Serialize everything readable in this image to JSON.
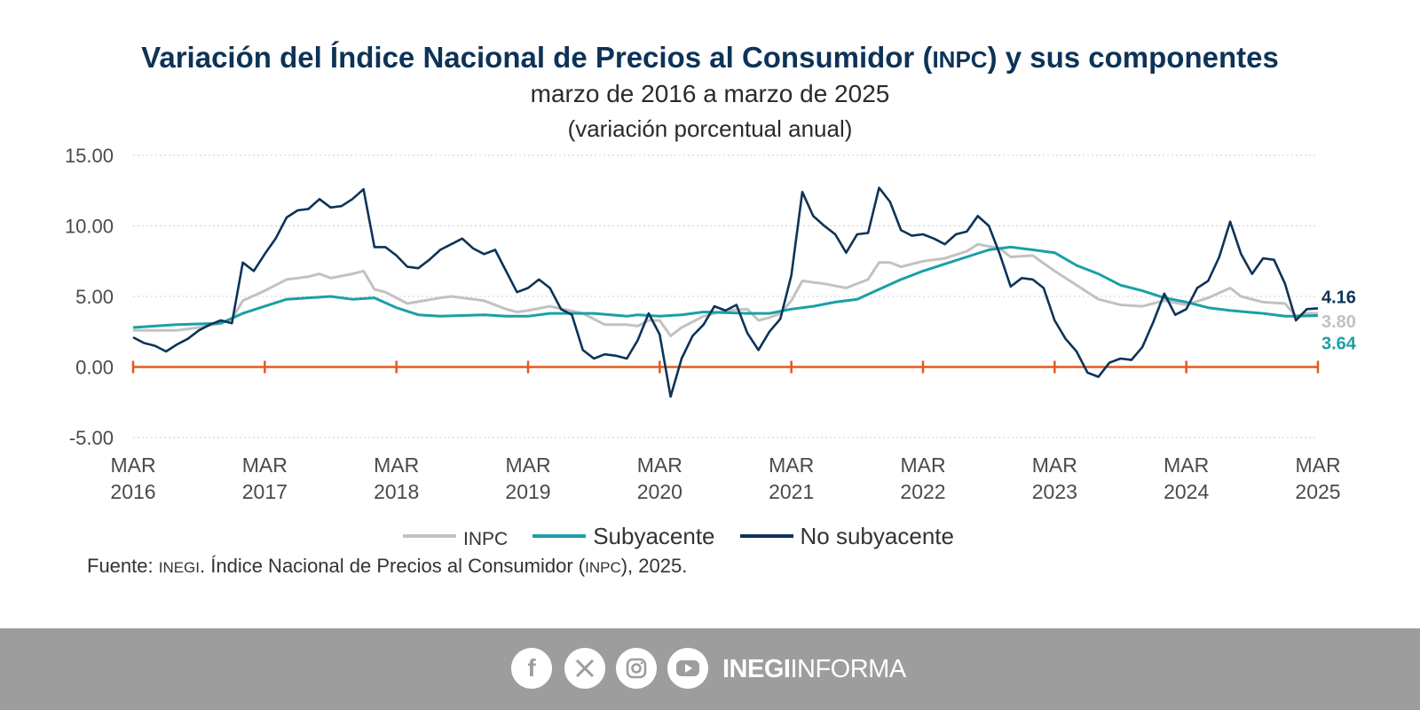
{
  "header": {
    "title_pre": "Variación del Índice Nacional de Precios al Consumidor (",
    "title_abbr": "INPC",
    "title_post": ") y sus componentes",
    "subtitle": "marzo de 2016 a marzo de 2025",
    "unit": "(variación porcentual anual)"
  },
  "legend": {
    "inpc": "INPC",
    "sub": "Subyacente",
    "nosub": "No subyacente"
  },
  "source": {
    "pre": "Fuente: ",
    "org": "INEGI",
    "mid": ". Índice Nacional de Precios al Consumidor (",
    "abbr": "INPC",
    "post": "), 2025."
  },
  "footer": {
    "brand_bold": "INEGI",
    "brand_rest": "INFORMA",
    "icons": [
      "facebook-icon",
      "x-icon",
      "instagram-icon",
      "youtube-icon"
    ]
  },
  "colors": {
    "inpc": "#c2c2c2",
    "sub": "#1aa0a6",
    "nosub": "#0d3358",
    "zero_axis": "#e05a1e",
    "footer": "#9d9d9d"
  },
  "chart_data": {
    "type": "line",
    "title": "Variación del Índice Nacional de Precios al Consumidor (INPC) y sus componentes",
    "subtitle": "marzo de 2016 a marzo de 2025",
    "ylabel": "(variación porcentual anual)",
    "ylim": [
      -5,
      15
    ],
    "yticks": [
      "15.00",
      "10.00",
      "5.00",
      "0.00",
      "-5.00"
    ],
    "xlim": [
      2016.167,
      2025.167
    ],
    "xticks": [
      "MAR 2016",
      "MAR 2017",
      "MAR 2018",
      "MAR 2019",
      "MAR 2020",
      "MAR 2021",
      "MAR 2022",
      "MAR 2023",
      "MAR 2024",
      "MAR 2025"
    ],
    "grid": true,
    "legend_position": "bottom",
    "end_labels": [
      "4.16",
      "3.80",
      "3.64"
    ],
    "series": [
      {
        "name": "INPC",
        "values": [
          [
            2016.167,
            2.6
          ],
          [
            2016.5,
            2.6
          ],
          [
            2016.667,
            2.8
          ],
          [
            2016.833,
            3.1
          ],
          [
            2016.917,
            3.4
          ],
          [
            2017.0,
            4.7
          ],
          [
            2017.167,
            5.4
          ],
          [
            2017.333,
            6.2
          ],
          [
            2017.5,
            6.4
          ],
          [
            2017.583,
            6.6
          ],
          [
            2017.667,
            6.3
          ],
          [
            2017.833,
            6.6
          ],
          [
            2017.917,
            6.8
          ],
          [
            2018.0,
            5.5
          ],
          [
            2018.083,
            5.3
          ],
          [
            2018.25,
            4.5
          ],
          [
            2018.5,
            4.9
          ],
          [
            2018.583,
            5.0
          ],
          [
            2018.833,
            4.7
          ],
          [
            2019.0,
            4.1
          ],
          [
            2019.083,
            3.9
          ],
          [
            2019.167,
            4.0
          ],
          [
            2019.333,
            4.3
          ],
          [
            2019.583,
            3.8
          ],
          [
            2019.75,
            3.0
          ],
          [
            2019.917,
            3.0
          ],
          [
            2020.0,
            2.9
          ],
          [
            2020.083,
            3.3
          ],
          [
            2020.167,
            3.3
          ],
          [
            2020.25,
            2.2
          ],
          [
            2020.333,
            2.8
          ],
          [
            2020.5,
            3.6
          ],
          [
            2020.667,
            4.0
          ],
          [
            2020.833,
            4.1
          ],
          [
            2020.917,
            3.3
          ],
          [
            2021.0,
            3.5
          ],
          [
            2021.083,
            3.8
          ],
          [
            2021.167,
            4.7
          ],
          [
            2021.25,
            6.1
          ],
          [
            2021.417,
            5.9
          ],
          [
            2021.583,
            5.6
          ],
          [
            2021.75,
            6.2
          ],
          [
            2021.833,
            7.4
          ],
          [
            2021.917,
            7.4
          ],
          [
            2022.0,
            7.1
          ],
          [
            2022.167,
            7.5
          ],
          [
            2022.333,
            7.7
          ],
          [
            2022.5,
            8.2
          ],
          [
            2022.583,
            8.7
          ],
          [
            2022.75,
            8.4
          ],
          [
            2022.833,
            7.8
          ],
          [
            2023.0,
            7.9
          ],
          [
            2023.167,
            6.8
          ],
          [
            2023.333,
            5.8
          ],
          [
            2023.5,
            4.8
          ],
          [
            2023.667,
            4.4
          ],
          [
            2023.833,
            4.3
          ],
          [
            2024.0,
            4.7
          ],
          [
            2024.167,
            4.4
          ],
          [
            2024.333,
            4.9
          ],
          [
            2024.5,
            5.6
          ],
          [
            2024.583,
            5.0
          ],
          [
            2024.75,
            4.6
          ],
          [
            2024.917,
            4.5
          ],
          [
            2025.0,
            3.6
          ],
          [
            2025.083,
            3.8
          ],
          [
            2025.167,
            3.8
          ]
        ]
      },
      {
        "name": "Subyacente",
        "values": [
          [
            2016.167,
            2.8
          ],
          [
            2016.5,
            3.0
          ],
          [
            2016.833,
            3.1
          ],
          [
            2017.0,
            3.8
          ],
          [
            2017.167,
            4.3
          ],
          [
            2017.333,
            4.8
          ],
          [
            2017.5,
            4.9
          ],
          [
            2017.667,
            5.0
          ],
          [
            2017.833,
            4.8
          ],
          [
            2018.0,
            4.9
          ],
          [
            2018.167,
            4.2
          ],
          [
            2018.333,
            3.7
          ],
          [
            2018.5,
            3.6
          ],
          [
            2018.833,
            3.7
          ],
          [
            2019.0,
            3.6
          ],
          [
            2019.167,
            3.6
          ],
          [
            2019.333,
            3.8
          ],
          [
            2019.667,
            3.8
          ],
          [
            2019.917,
            3.6
          ],
          [
            2020.0,
            3.7
          ],
          [
            2020.167,
            3.6
          ],
          [
            2020.333,
            3.7
          ],
          [
            2020.5,
            3.9
          ],
          [
            2020.833,
            3.8
          ],
          [
            2021.0,
            3.8
          ],
          [
            2021.167,
            4.1
          ],
          [
            2021.333,
            4.3
          ],
          [
            2021.5,
            4.6
          ],
          [
            2021.667,
            4.8
          ],
          [
            2021.833,
            5.5
          ],
          [
            2022.0,
            6.2
          ],
          [
            2022.167,
            6.8
          ],
          [
            2022.333,
            7.3
          ],
          [
            2022.5,
            7.8
          ],
          [
            2022.667,
            8.3
          ],
          [
            2022.833,
            8.5
          ],
          [
            2023.0,
            8.3
          ],
          [
            2023.167,
            8.1
          ],
          [
            2023.333,
            7.2
          ],
          [
            2023.5,
            6.6
          ],
          [
            2023.667,
            5.8
          ],
          [
            2023.833,
            5.4
          ],
          [
            2024.0,
            4.9
          ],
          [
            2024.167,
            4.6
          ],
          [
            2024.333,
            4.2
          ],
          [
            2024.5,
            4.0
          ],
          [
            2024.75,
            3.8
          ],
          [
            2024.917,
            3.6
          ],
          [
            2025.0,
            3.6
          ],
          [
            2025.167,
            3.64
          ]
        ]
      },
      {
        "name": "No subyacente",
        "values": [
          [
            2016.167,
            2.1
          ],
          [
            2016.25,
            1.7
          ],
          [
            2016.333,
            1.5
          ],
          [
            2016.417,
            1.1
          ],
          [
            2016.5,
            1.6
          ],
          [
            2016.583,
            2.0
          ],
          [
            2016.667,
            2.6
          ],
          [
            2016.75,
            3.0
          ],
          [
            2016.833,
            3.3
          ],
          [
            2016.917,
            3.1
          ],
          [
            2017.0,
            7.4
          ],
          [
            2017.083,
            6.8
          ],
          [
            2017.167,
            8.0
          ],
          [
            2017.25,
            9.1
          ],
          [
            2017.333,
            10.6
          ],
          [
            2017.417,
            11.1
          ],
          [
            2017.5,
            11.2
          ],
          [
            2017.583,
            11.9
          ],
          [
            2017.667,
            11.3
          ],
          [
            2017.75,
            11.4
          ],
          [
            2017.833,
            11.9
          ],
          [
            2017.917,
            12.6
          ],
          [
            2018.0,
            8.5
          ],
          [
            2018.083,
            8.5
          ],
          [
            2018.167,
            7.9
          ],
          [
            2018.25,
            7.1
          ],
          [
            2018.333,
            7.0
          ],
          [
            2018.417,
            7.6
          ],
          [
            2018.5,
            8.3
          ],
          [
            2018.583,
            8.7
          ],
          [
            2018.667,
            9.1
          ],
          [
            2018.75,
            8.4
          ],
          [
            2018.833,
            8.0
          ],
          [
            2018.917,
            8.3
          ],
          [
            2019.0,
            6.8
          ],
          [
            2019.083,
            5.3
          ],
          [
            2019.167,
            5.6
          ],
          [
            2019.25,
            6.2
          ],
          [
            2019.333,
            5.6
          ],
          [
            2019.417,
            4.1
          ],
          [
            2019.5,
            3.7
          ],
          [
            2019.583,
            1.2
          ],
          [
            2019.667,
            0.6
          ],
          [
            2019.75,
            0.9
          ],
          [
            2019.833,
            0.8
          ],
          [
            2019.917,
            0.6
          ],
          [
            2020.0,
            1.9
          ],
          [
            2020.083,
            3.8
          ],
          [
            2020.167,
            2.3
          ],
          [
            2020.25,
            -2.1
          ],
          [
            2020.333,
            0.6
          ],
          [
            2020.417,
            2.2
          ],
          [
            2020.5,
            3.0
          ],
          [
            2020.583,
            4.3
          ],
          [
            2020.667,
            4.0
          ],
          [
            2020.75,
            4.4
          ],
          [
            2020.833,
            2.4
          ],
          [
            2020.917,
            1.2
          ],
          [
            2021.0,
            2.5
          ],
          [
            2021.083,
            3.4
          ],
          [
            2021.167,
            6.5
          ],
          [
            2021.25,
            12.4
          ],
          [
            2021.333,
            10.7
          ],
          [
            2021.417,
            10.0
          ],
          [
            2021.5,
            9.4
          ],
          [
            2021.583,
            8.1
          ],
          [
            2021.667,
            9.4
          ],
          [
            2021.75,
            9.5
          ],
          [
            2021.833,
            12.7
          ],
          [
            2021.917,
            11.7
          ],
          [
            2022.0,
            9.7
          ],
          [
            2022.083,
            9.3
          ],
          [
            2022.167,
            9.4
          ],
          [
            2022.25,
            9.1
          ],
          [
            2022.333,
            8.7
          ],
          [
            2022.417,
            9.4
          ],
          [
            2022.5,
            9.6
          ],
          [
            2022.583,
            10.7
          ],
          [
            2022.667,
            10.0
          ],
          [
            2022.75,
            8.0
          ],
          [
            2022.833,
            5.7
          ],
          [
            2022.917,
            6.3
          ],
          [
            2023.0,
            6.2
          ],
          [
            2023.083,
            5.6
          ],
          [
            2023.167,
            3.3
          ],
          [
            2023.25,
            2.0
          ],
          [
            2023.333,
            1.1
          ],
          [
            2023.417,
            -0.4
          ],
          [
            2023.5,
            -0.7
          ],
          [
            2023.583,
            0.3
          ],
          [
            2023.667,
            0.6
          ],
          [
            2023.75,
            0.5
          ],
          [
            2023.833,
            1.4
          ],
          [
            2023.917,
            3.2
          ],
          [
            2024.0,
            5.2
          ],
          [
            2024.083,
            3.7
          ],
          [
            2024.167,
            4.1
          ],
          [
            2024.25,
            5.6
          ],
          [
            2024.333,
            6.1
          ],
          [
            2024.417,
            7.8
          ],
          [
            2024.5,
            10.3
          ],
          [
            2024.583,
            8.0
          ],
          [
            2024.667,
            6.6
          ],
          [
            2024.75,
            7.7
          ],
          [
            2024.833,
            7.6
          ],
          [
            2024.917,
            5.9
          ],
          [
            2025.0,
            3.3
          ],
          [
            2025.083,
            4.1
          ],
          [
            2025.167,
            4.16
          ]
        ]
      }
    ]
  }
}
